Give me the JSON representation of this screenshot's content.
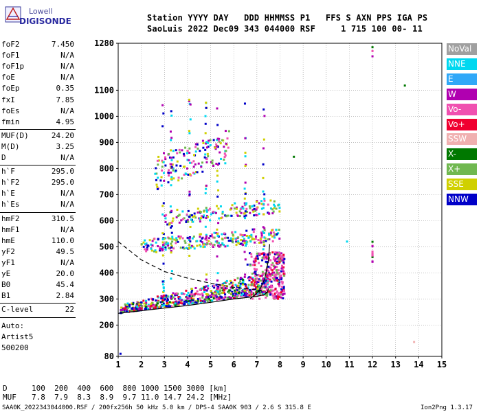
{
  "logo": {
    "line1": "Lowell",
    "line2": "DIGISONDE"
  },
  "header": {
    "labels": "Station YYYY DAY   DDD HHMMSS P1   FFS S AXN PPS IGA PS",
    "values": "SaoLuis 2022 Dec09 343 044000 RSF     1 715 100 00- 11"
  },
  "params_group1": [
    {
      "name": "foF2",
      "value": "7.450"
    },
    {
      "name": "foF1",
      "value": "N/A"
    },
    {
      "name": "foF1p",
      "value": "N/A"
    },
    {
      "name": "foE",
      "value": "N/A"
    },
    {
      "name": "foEp",
      "value": "0.35"
    },
    {
      "name": "fxI",
      "value": "7.85"
    },
    {
      "name": "foEs",
      "value": "N/A"
    },
    {
      "name": "fmin",
      "value": "4.95"
    }
  ],
  "params_group2": [
    {
      "name": "MUF(D)",
      "value": "24.20"
    },
    {
      "name": "M(D)",
      "value": "3.25"
    },
    {
      "name": "D",
      "value": "N/A"
    }
  ],
  "params_group3": [
    {
      "name": "h`F",
      "value": "295.0"
    },
    {
      "name": "h`F2",
      "value": "295.0"
    },
    {
      "name": "h`E",
      "value": "N/A"
    },
    {
      "name": "h`Es",
      "value": "N/A"
    }
  ],
  "params_group4": [
    {
      "name": "hmF2",
      "value": "310.5"
    },
    {
      "name": "hmF1",
      "value": "N/A"
    },
    {
      "name": "hmE",
      "value": "110.0"
    },
    {
      "name": "yF2",
      "value": "49.5"
    },
    {
      "name": "yF1",
      "value": "N/A"
    },
    {
      "name": "yE",
      "value": "20.0"
    },
    {
      "name": "B0",
      "value": "45.4"
    },
    {
      "name": "B1",
      "value": "2.84"
    }
  ],
  "clevel": {
    "name": "C-level",
    "value": "22"
  },
  "auto": {
    "line1": "Auto:",
    "line2": "Artist5",
    "line3": "500200"
  },
  "legend": [
    {
      "label": "NoVal",
      "color": "#a0a0a0"
    },
    {
      "label": "NNE",
      "color": "#00d8f0"
    },
    {
      "label": "E",
      "color": "#30a8f8"
    },
    {
      "label": "W",
      "color": "#b000b0"
    },
    {
      "label": "Vo-",
      "color": "#f050b0"
    },
    {
      "label": "Vo+",
      "color": "#f00030"
    },
    {
      "label": "SSW",
      "color": "#f0b0b0"
    },
    {
      "label": "X-",
      "color": "#007800"
    },
    {
      "label": "X+",
      "color": "#70b850"
    },
    {
      "label": "SSE",
      "color": "#d0d000"
    },
    {
      "label": "NNW",
      "color": "#0000c8"
    }
  ],
  "muf_table": {
    "d_label": "D",
    "d_values": "100  200  400  600  800 1000 1500 3000 [km]",
    "muf_label": "MUF",
    "muf_values": "7.8  7.9  8.3  8.9  9.7 11.0 14.7 24.2 [MHz]"
  },
  "footer": {
    "left": "SAA0K_2022343044000.RSF / 200fx256h 50 kHz 5.0 km / DPS-4 SAA0K 903 / 2.6 S 315.8 E",
    "right": "Ion2Png 1.3.17"
  },
  "chart_data": {
    "type": "scatter",
    "title": "",
    "xlabel": "",
    "ylabel": "",
    "xlim": [
      1,
      15
    ],
    "ylim": [
      80,
      1280
    ],
    "x_ticks": [
      1,
      2,
      3,
      4,
      5,
      6,
      7,
      8,
      9,
      10,
      11,
      12,
      13,
      14,
      15
    ],
    "y_ticks": [
      80,
      200,
      300,
      400,
      500,
      600,
      700,
      800,
      900,
      1000,
      1100,
      1280
    ],
    "grid": true,
    "legend_position": "right",
    "clusters": [
      {
        "name": "F2 trace (1 hop)",
        "x_range": [
          1.1,
          7.5
        ],
        "y_base": 245,
        "y_spread": 50,
        "count": 650
      },
      {
        "name": "F2 vertical cusp",
        "x_range": [
          6.5,
          8.2
        ],
        "y_range": [
          300,
          480
        ],
        "count": 320
      },
      {
        "name": "2 hop",
        "x_range": [
          2.0,
          8.0
        ],
        "y_range": [
          500,
          580
        ],
        "count": 260
      },
      {
        "name": "3 hop",
        "x_range": [
          3.0,
          8.0
        ],
        "y_range": [
          610,
          690
        ],
        "count": 160
      },
      {
        "name": "4 hop",
        "x_range": [
          2.6,
          5.8
        ],
        "y_range": [
          780,
          960
        ],
        "count": 150
      }
    ],
    "fitted_curves": [
      {
        "name": "model O-trace",
        "style": "solid",
        "points": [
          [
            1.0,
            245
          ],
          [
            2,
            255
          ],
          [
            3,
            265
          ],
          [
            4,
            275
          ],
          [
            5,
            287
          ],
          [
            6,
            300
          ],
          [
            7,
            310
          ],
          [
            7.3,
            316
          ],
          [
            7.45,
            325
          ],
          [
            7.5,
            340
          ]
        ]
      },
      {
        "name": "model upper",
        "style": "solid",
        "points": [
          [
            6.7,
            300
          ],
          [
            7.1,
            330
          ],
          [
            7.35,
            380
          ],
          [
            7.5,
            450
          ],
          [
            7.55,
            510
          ]
        ]
      },
      {
        "name": "profile",
        "style": "dashed",
        "points": [
          [
            1.0,
            520
          ],
          [
            2,
            450
          ],
          [
            3,
            405
          ],
          [
            4,
            380
          ],
          [
            5,
            360
          ],
          [
            6,
            345
          ],
          [
            7,
            335
          ],
          [
            7.45,
            325
          ]
        ]
      }
    ]
  }
}
